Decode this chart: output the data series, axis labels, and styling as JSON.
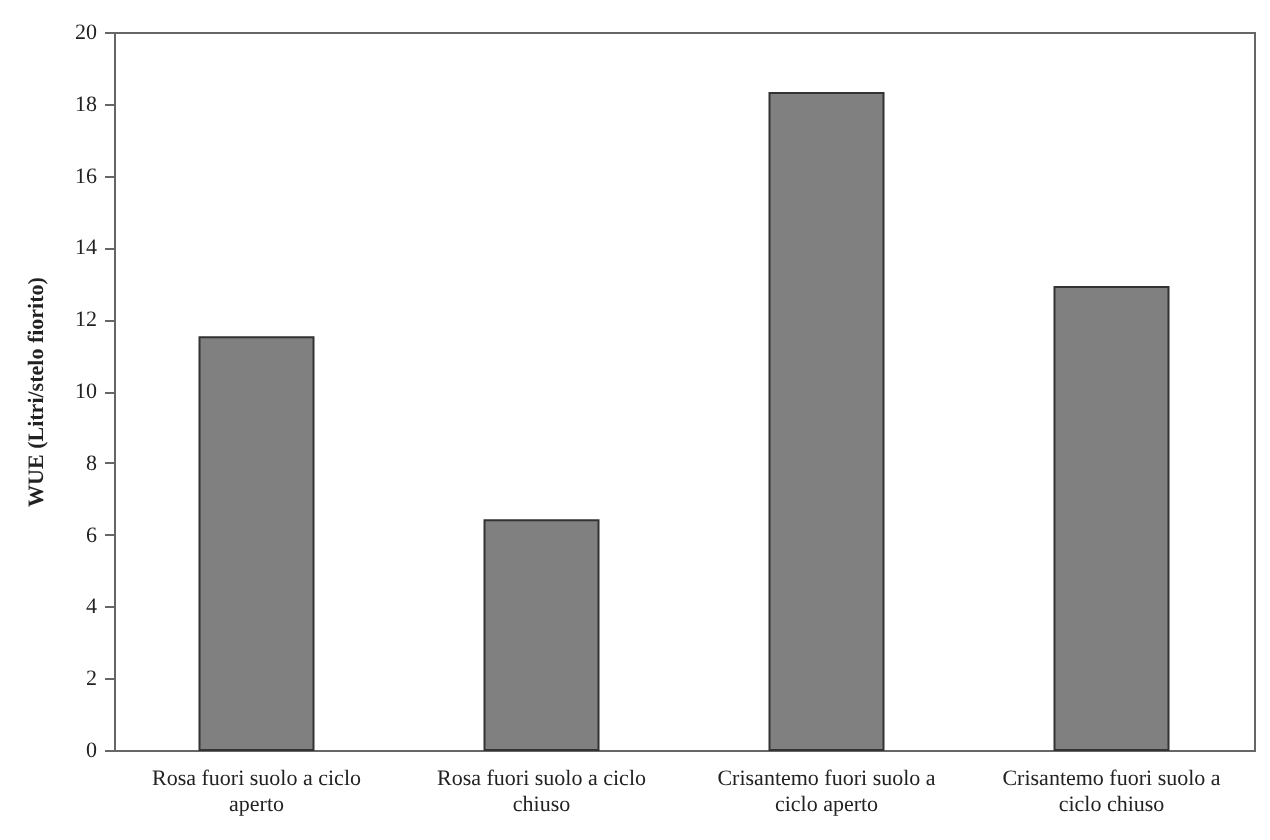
{
  "chart_data": {
    "type": "bar",
    "ylabel": "WUE (Litri/stelo fiorito)",
    "categories": [
      "Rosa fuori suolo a ciclo aperto",
      "Rosa fuori suolo a ciclo chiuso",
      "Crisantemo fuori suolo a ciclo aperto",
      "Crisantemo fuori suolo a ciclo chiuso"
    ],
    "values": [
      11.5,
      6.4,
      18.3,
      12.9
    ],
    "color": "#808080",
    "ylim": [
      0,
      20
    ],
    "yticks": [
      0,
      2,
      4,
      6,
      8,
      10,
      12,
      14,
      16,
      18,
      20
    ],
    "grid": false
  }
}
